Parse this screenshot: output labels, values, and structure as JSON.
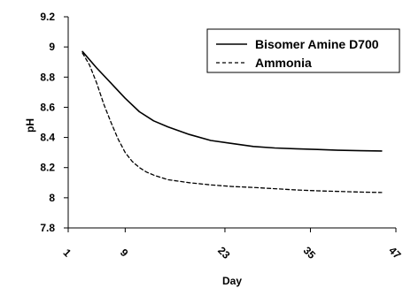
{
  "chart_data": {
    "type": "line",
    "title": "",
    "xlabel": "Day",
    "ylabel": "pH",
    "xlim": [
      1,
      47
    ],
    "ylim": [
      7.8,
      9.2
    ],
    "x_ticks": [
      1,
      9,
      23,
      35,
      47
    ],
    "x_tick_labels": [
      "1",
      "9",
      "23",
      "35",
      "47"
    ],
    "y_ticks": [
      7.8,
      8.0,
      8.2,
      8.4,
      8.6,
      8.8,
      9.0,
      9.2
    ],
    "y_tick_labels": [
      "7.8",
      "8",
      "8.2",
      "8.4",
      "8.6",
      "8.8",
      "9",
      "9.2"
    ],
    "grid": false,
    "legend_placement": "top-right",
    "series": [
      {
        "name": "Bisomer Amine D700",
        "style": "solid",
        "color": "#000000",
        "x": [
          3,
          5,
          7,
          9,
          11,
          13,
          15,
          18,
          21,
          24,
          27,
          30,
          33,
          36,
          39,
          42,
          45
        ],
        "y": [
          8.97,
          8.86,
          8.76,
          8.66,
          8.57,
          8.51,
          8.47,
          8.42,
          8.38,
          8.36,
          8.34,
          8.33,
          8.325,
          8.32,
          8.315,
          8.312,
          8.31
        ]
      },
      {
        "name": "Ammonia",
        "style": "dashed",
        "color": "#000000",
        "x": [
          3,
          4,
          5,
          6,
          7,
          8,
          9,
          10,
          11,
          12,
          13,
          15,
          18,
          21,
          24,
          27,
          30,
          33,
          36,
          39,
          42,
          45
        ],
        "y": [
          8.96,
          8.88,
          8.76,
          8.62,
          8.5,
          8.39,
          8.3,
          8.24,
          8.2,
          8.17,
          8.15,
          8.12,
          8.1,
          8.085,
          8.075,
          8.068,
          8.06,
          8.052,
          8.046,
          8.042,
          8.038,
          8.035
        ]
      }
    ]
  }
}
